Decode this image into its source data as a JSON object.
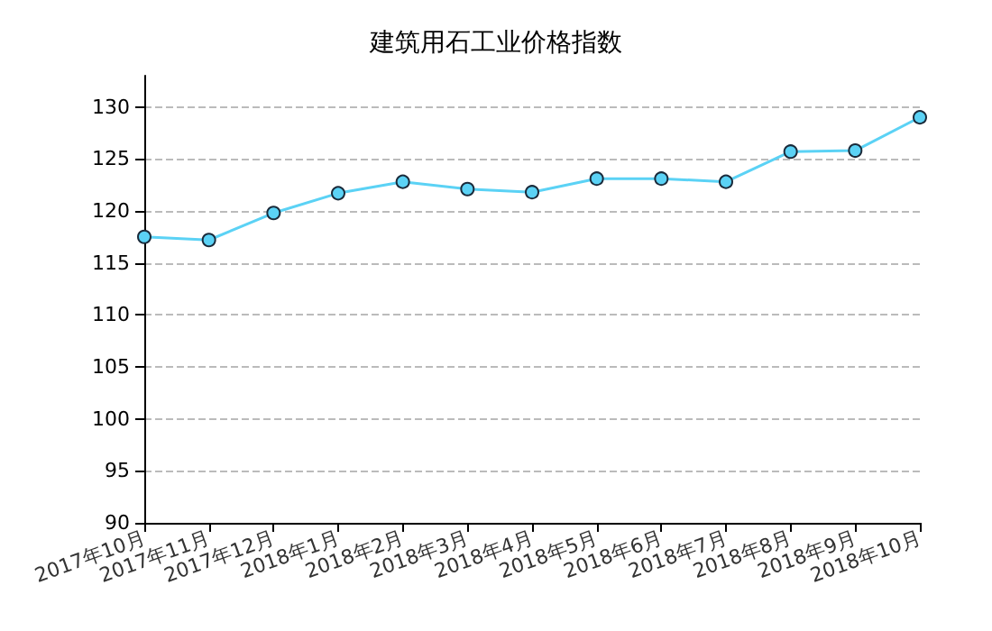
{
  "chart_data": {
    "type": "line",
    "title": "建筑用石工业价格指数",
    "categories": [
      "2017年10月",
      "2017年11月",
      "2017年12月",
      "2018年1月",
      "2018年2月",
      "2018年3月",
      "2018年4月",
      "2018年5月",
      "2018年6月",
      "2018年7月",
      "2018年8月",
      "2018年9月",
      "2018年10月"
    ],
    "series": [
      {
        "color": "#5bd2f5",
        "values": [
          117.5,
          117.2,
          119.8,
          121.7,
          122.8,
          122.1,
          121.8,
          123.1,
          123.1,
          122.8,
          125.7,
          125.8,
          129.0
        ]
      }
    ],
    "ylim": [
      90,
      133
    ],
    "yticks": [
      90,
      95,
      100,
      105,
      110,
      115,
      120,
      125,
      130
    ],
    "grid": "y",
    "marker": "circle",
    "line_style": "solid"
  }
}
